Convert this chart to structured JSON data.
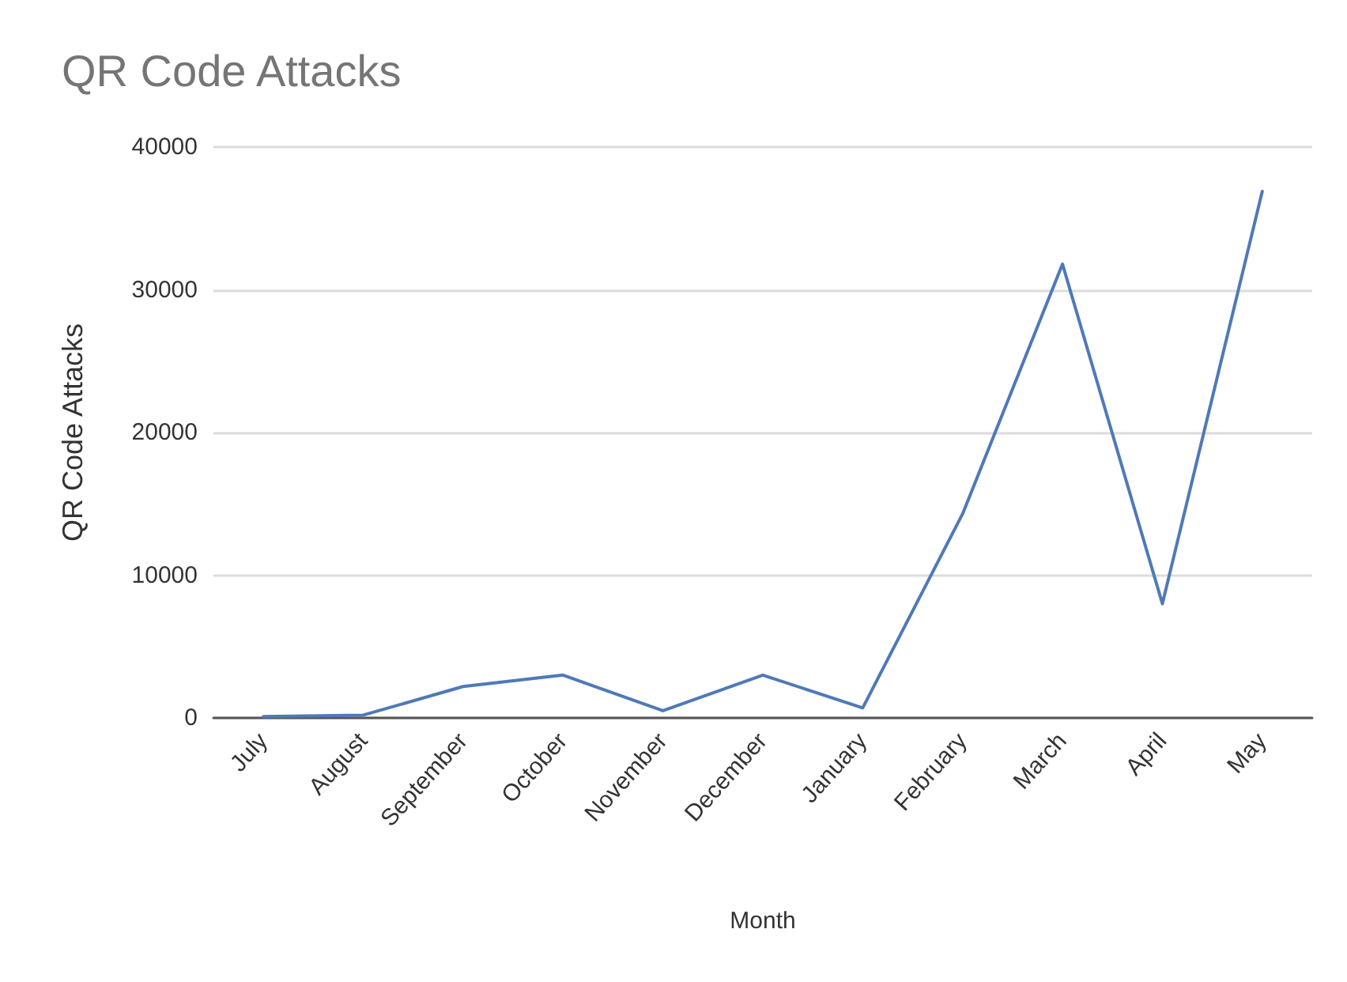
{
  "chart_data": {
    "type": "line",
    "title": "QR Code Attacks",
    "xlabel": "Month",
    "ylabel": "QR Code Attacks",
    "categories": [
      "July",
      "August",
      "September",
      "October",
      "November",
      "December",
      "January",
      "February",
      "March",
      "April",
      "May"
    ],
    "series": [
      {
        "color": "#4f79b8",
        "values": [
          100,
          200,
          2200,
          3000,
          500,
          3000,
          700,
          14300,
          31800,
          8000,
          36900
        ]
      }
    ],
    "ylim": [
      0,
      40000
    ],
    "yticks": [
      0,
      10000,
      20000,
      30000,
      40000
    ],
    "grid": "y",
    "marker": "none"
  }
}
